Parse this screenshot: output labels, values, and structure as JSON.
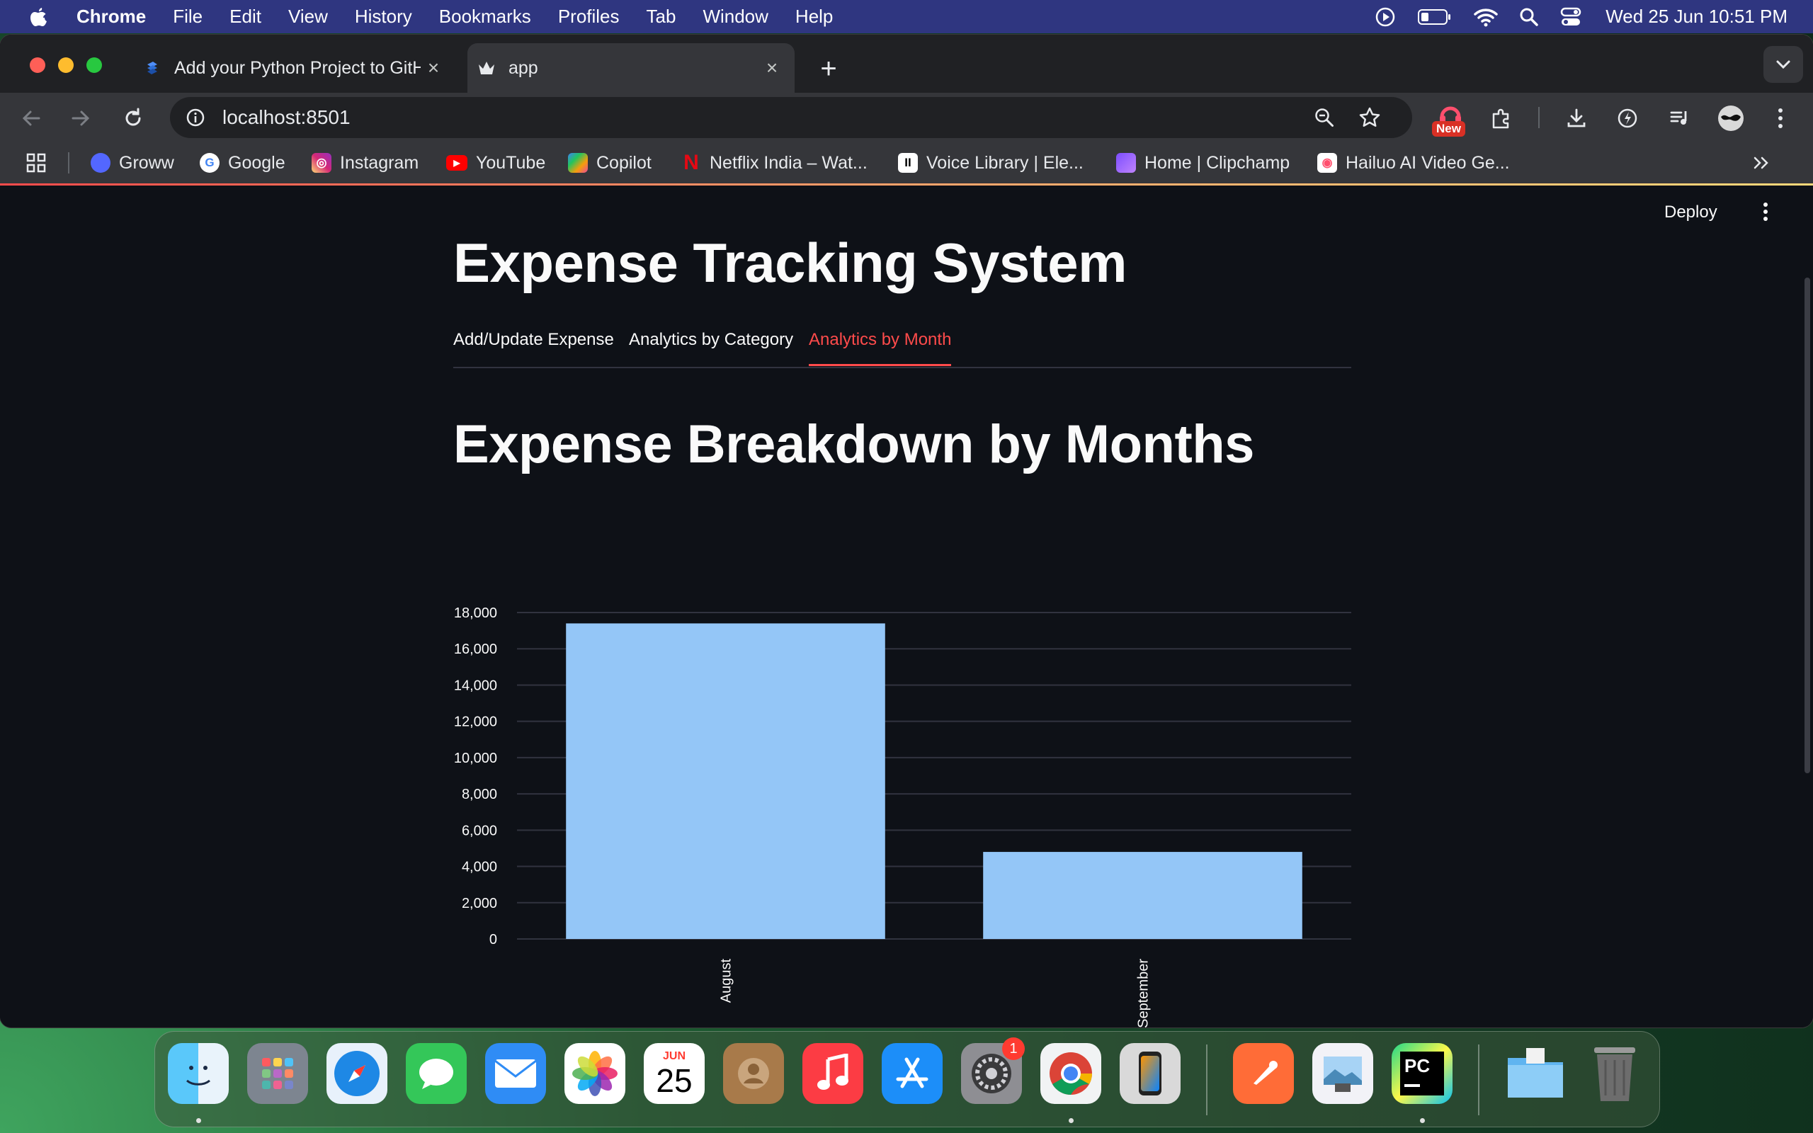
{
  "menubar": {
    "app_name": "Chrome",
    "items": [
      "File",
      "Edit",
      "View",
      "History",
      "Bookmarks",
      "Profiles",
      "Tab",
      "Window",
      "Help"
    ],
    "clock": "Wed 25 Jun  10:51 PM"
  },
  "browser": {
    "tabs": [
      {
        "title": "Add your Python Project to GitHub",
        "active": false
      },
      {
        "title": "app",
        "active": true
      }
    ],
    "url": "localhost:8501",
    "extension_badge": "New",
    "bookmarks": [
      {
        "label": "Groww",
        "color": "#5367ff"
      },
      {
        "label": "Google",
        "color": "#4285f4"
      },
      {
        "label": "Instagram",
        "color": "#d62976"
      },
      {
        "label": "YouTube",
        "color": "#ff0000"
      },
      {
        "label": "Copilot",
        "color": "#3b82f6"
      },
      {
        "label": "Netflix India – Wat...",
        "color": "#e50914"
      },
      {
        "label": "Voice Library | Ele...",
        "color": "#ffffff"
      },
      {
        "label": "Home | Clipchamp",
        "color": "#7c4dff"
      },
      {
        "label": "Hailuo AI Video Ge...",
        "color": "#ff6b6b"
      }
    ]
  },
  "app": {
    "deploy_label": "Deploy",
    "title": "Expense Tracking System",
    "tabs": [
      {
        "label": "Add/Update Expense",
        "active": false
      },
      {
        "label": "Analytics by Category",
        "active": false
      },
      {
        "label": "Analytics by Month",
        "active": true
      }
    ],
    "section_title": "Expense Breakdown by Months",
    "accent_color": "#ff4b4b"
  },
  "chart_data": {
    "type": "bar",
    "categories": [
      "August",
      "September"
    ],
    "values": [
      17400,
      4800
    ],
    "yticks": [
      "18,000",
      "16,000",
      "14,000",
      "12,000",
      "10,000",
      "8,000",
      "6,000",
      "4,000",
      "2,000",
      "0"
    ],
    "ylim": [
      0,
      18000
    ],
    "bar_color": "#94c6f7",
    "grid": true
  },
  "dock": {
    "calendar_month": "JUN",
    "calendar_day": "25",
    "settings_badge": "1",
    "pycharm_label": "PC"
  }
}
